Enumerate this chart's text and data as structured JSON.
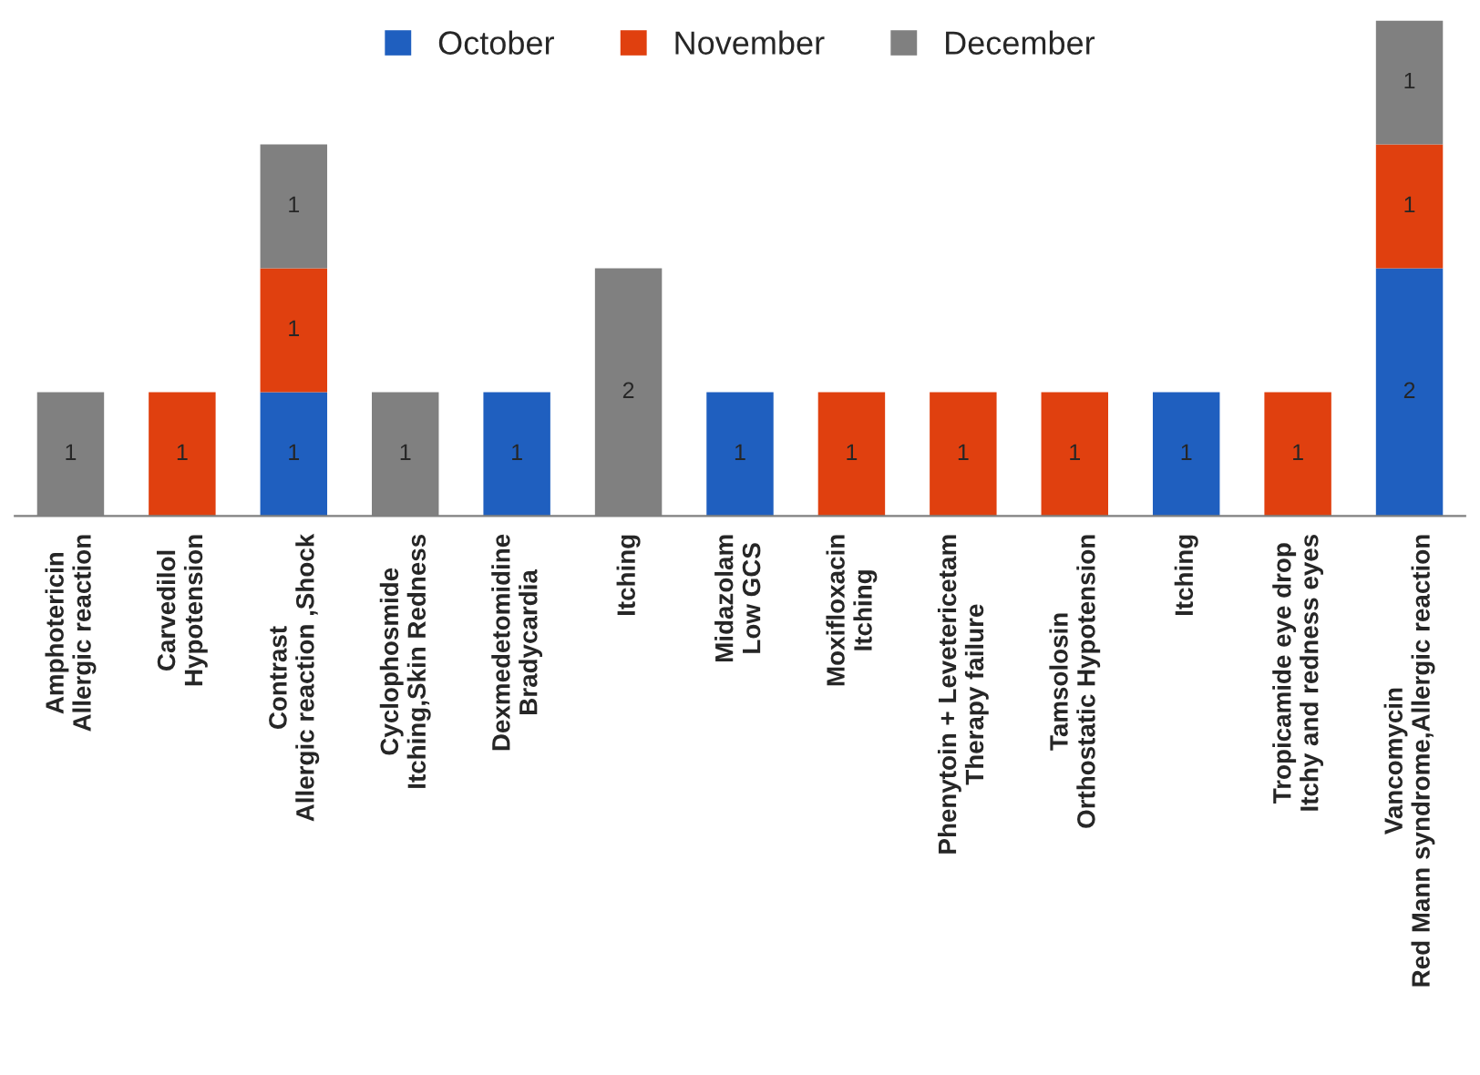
{
  "chart_data": {
    "type": "bar",
    "stacked": true,
    "data_labels": true,
    "legend": "top",
    "grid": false,
    "categories": [
      "Amphotericin\nAllergic reaction",
      "Carvedilol\nHypotension",
      "Contrast\nAllergic reaction ,Shock",
      "Cyclophosmide\nItching,Skin Redness",
      "Dexmedetomidine\nBradycardia",
      "Itching",
      "Midazolam\nLow GCS",
      "Moxifloxacin\nItching",
      "Phenytoin + Levetericetam\nTherapy failure",
      "Tamsolosin\nOrthostatic Hypotension",
      "Itching",
      "Tropicamide eye drop\nItchy and redness eyes",
      "Vancomycin\nRed Mann syndrome,Allergic reaction"
    ],
    "series": [
      {
        "name": "October",
        "color": "#1f5fbf",
        "values": [
          null,
          null,
          1,
          null,
          1,
          null,
          1,
          null,
          null,
          null,
          1,
          null,
          2
        ]
      },
      {
        "name": "November",
        "color": "#e0400f",
        "values": [
          null,
          1,
          1,
          null,
          null,
          null,
          null,
          1,
          1,
          1,
          null,
          1,
          1
        ]
      },
      {
        "name": "December",
        "color": "#808080",
        "values": [
          1,
          null,
          1,
          1,
          null,
          2,
          null,
          null,
          null,
          null,
          null,
          null,
          1
        ]
      }
    ]
  }
}
